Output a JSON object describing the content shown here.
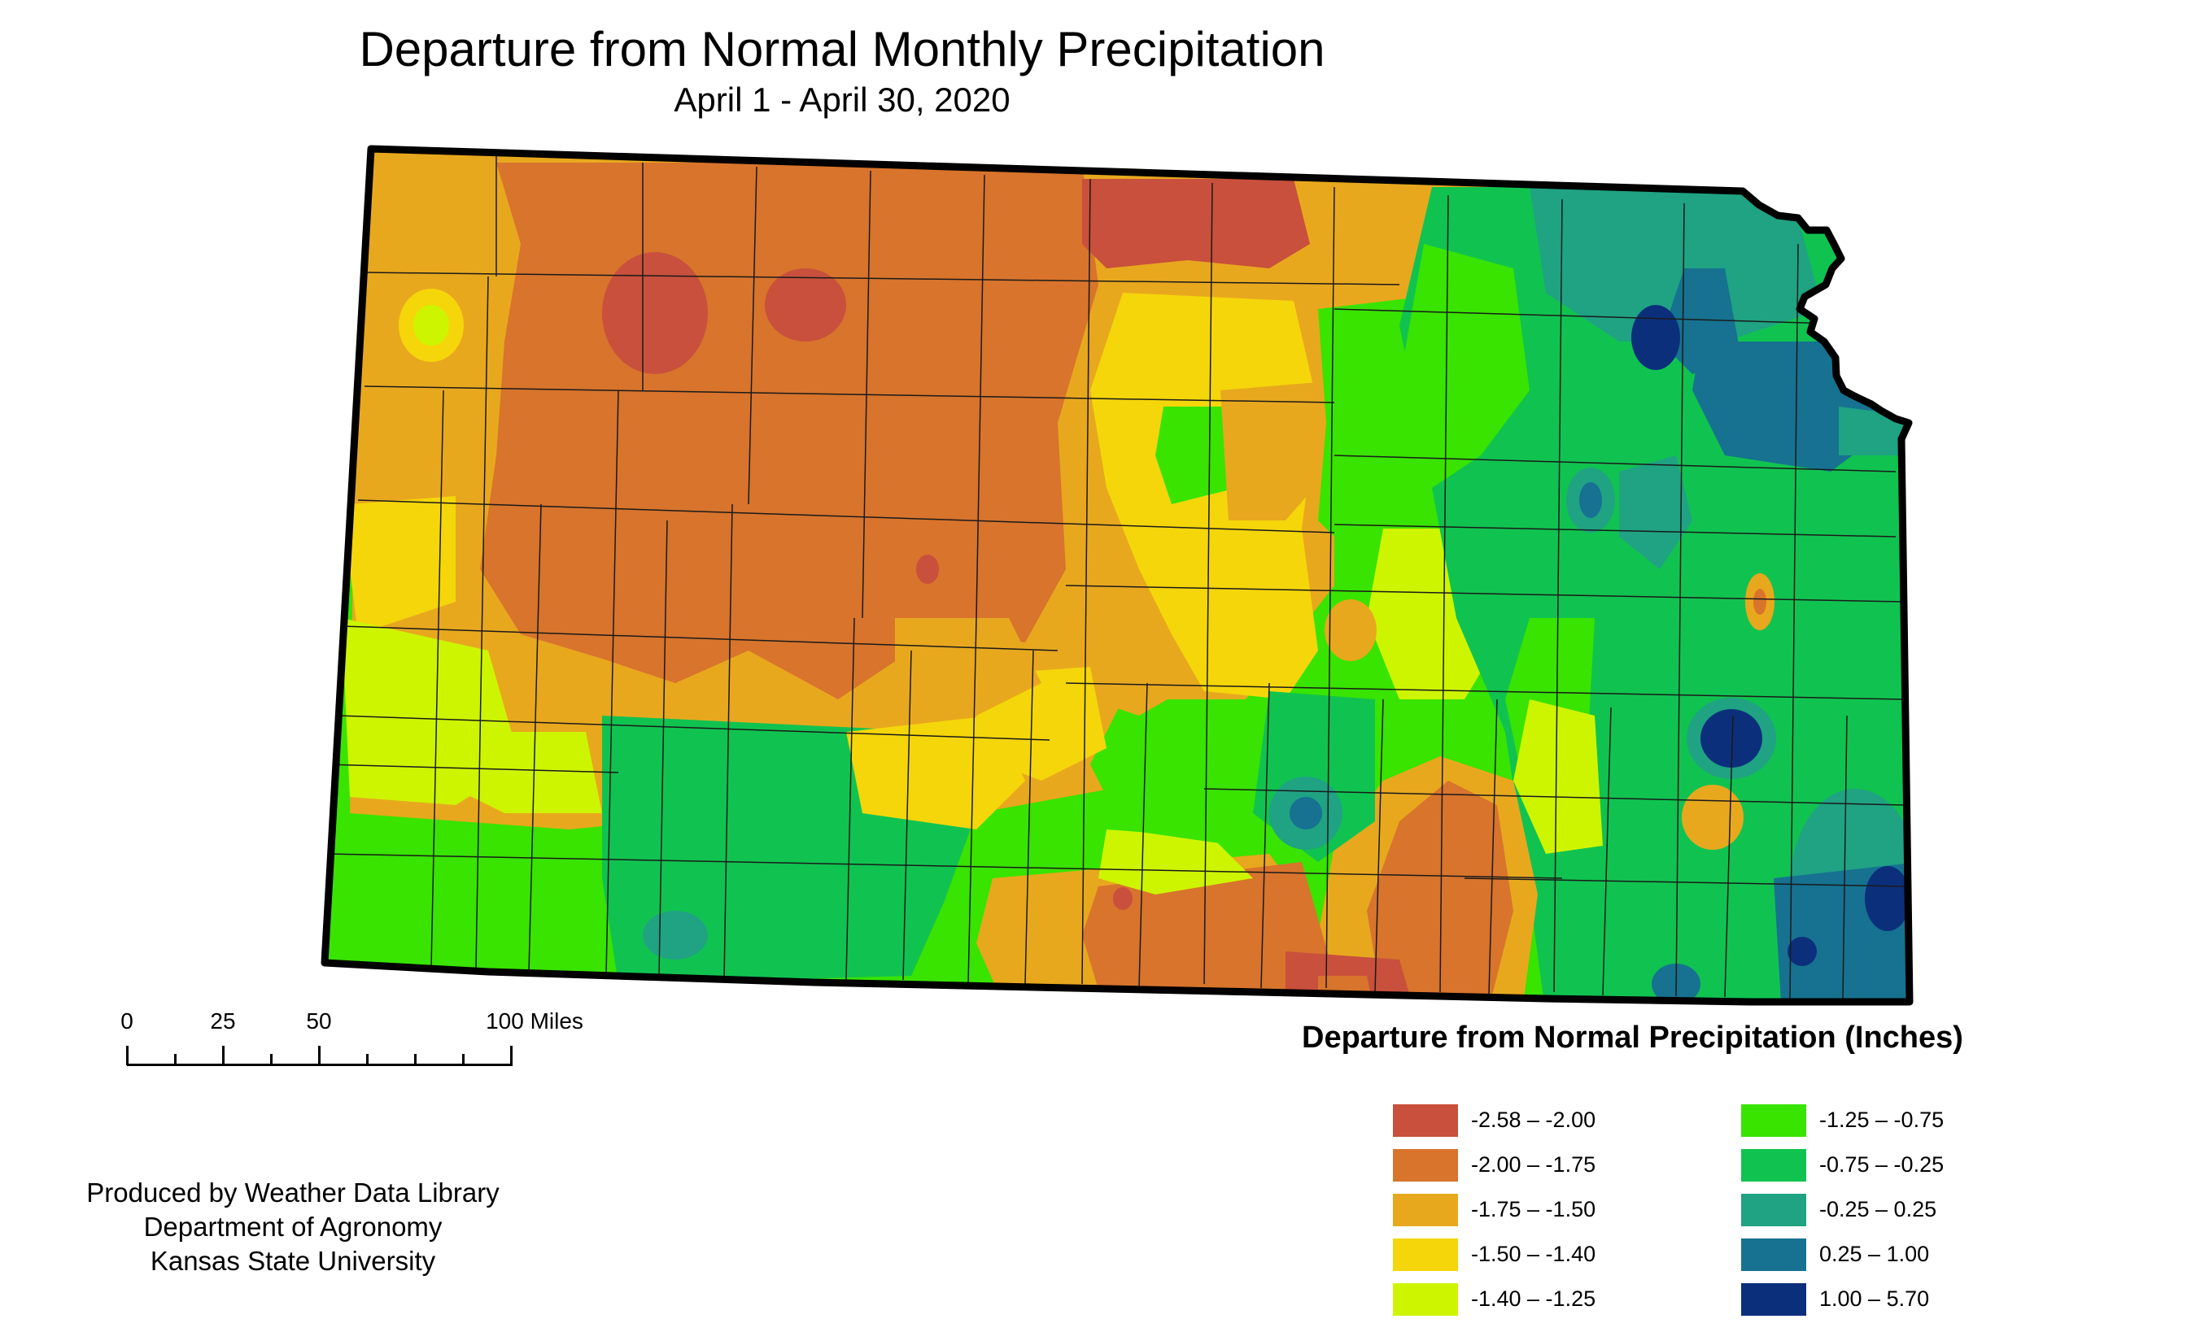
{
  "header": {
    "title": "Departure from Normal Monthly Precipitation",
    "subtitle": "April 1 - April 30, 2020"
  },
  "scale": {
    "labels": [
      "0",
      "25",
      "50",
      "100 Miles"
    ]
  },
  "credits": {
    "line1": "Produced by Weather Data Library",
    "line2": "Department of Agronomy",
    "line3": "Kansas State University"
  },
  "legend": {
    "title": "Departure from Normal Precipitation (Inches)",
    "items": [
      {
        "label": "-2.58 – -2.00",
        "color": "#c8503c"
      },
      {
        "label": "-2.00 – -1.75",
        "color": "#d8742c"
      },
      {
        "label": "-1.75 – -1.50",
        "color": "#e8a81e"
      },
      {
        "label": "-1.50 – -1.40",
        "color": "#f5d60a"
      },
      {
        "label": "-1.40 – -1.25",
        "color": "#cef500"
      },
      {
        "label": "-1.25 – -0.75",
        "color": "#38e400"
      },
      {
        "label": "-0.75 – -0.25",
        "color": "#10c350"
      },
      {
        "label": "-0.25 – 0.25",
        "color": "#1fa383"
      },
      {
        "label": "0.25 – 1.00",
        "color": "#167290"
      },
      {
        "label": "1.00 – 5.70",
        "color": "#0c2f7c"
      }
    ]
  }
}
